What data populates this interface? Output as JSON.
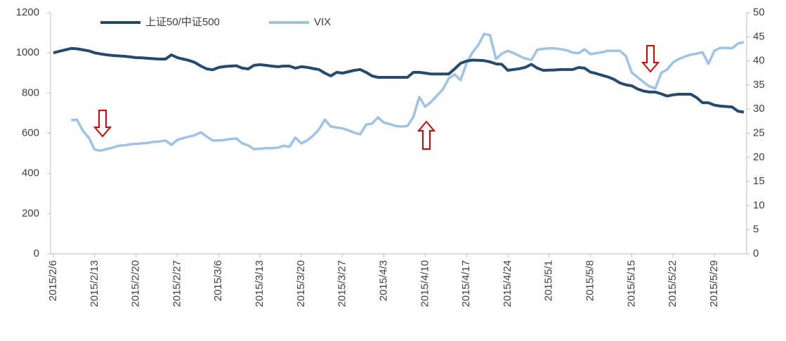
{
  "chart_data": {
    "type": "line",
    "x": [
      "2015/2/6",
      "2015/2/7",
      "2015/2/8",
      "2015/2/9",
      "2015/2/10",
      "2015/2/11",
      "2015/2/12",
      "2015/2/13",
      "2015/2/14",
      "2015/2/15",
      "2015/2/16",
      "2015/2/17",
      "2015/2/18",
      "2015/2/19",
      "2015/2/20",
      "2015/2/21",
      "2015/2/22",
      "2015/2/23",
      "2015/2/24",
      "2015/2/25",
      "2015/2/26",
      "2015/2/27",
      "2015/2/28",
      "2015/3/1",
      "2015/3/2",
      "2015/3/3",
      "2015/3/4",
      "2015/3/5",
      "2015/3/6",
      "2015/3/7",
      "2015/3/8",
      "2015/3/9",
      "2015/3/10",
      "2015/3/11",
      "2015/3/12",
      "2015/3/13",
      "2015/3/14",
      "2015/3/15",
      "2015/3/16",
      "2015/3/17",
      "2015/3/18",
      "2015/3/19",
      "2015/3/20",
      "2015/3/21",
      "2015/3/22",
      "2015/3/23",
      "2015/3/24",
      "2015/3/25",
      "2015/3/26",
      "2015/3/27",
      "2015/3/28",
      "2015/3/29",
      "2015/3/30",
      "2015/3/31",
      "2015/4/1",
      "2015/4/2",
      "2015/4/3",
      "2015/4/4",
      "2015/4/5",
      "2015/4/6",
      "2015/4/7",
      "2015/4/8",
      "2015/4/9",
      "2015/4/10",
      "2015/4/11",
      "2015/4/12",
      "2015/4/13",
      "2015/4/14",
      "2015/4/15",
      "2015/4/16",
      "2015/4/17",
      "2015/4/18",
      "2015/4/19",
      "2015/4/20",
      "2015/4/21",
      "2015/4/22",
      "2015/4/23",
      "2015/4/24",
      "2015/4/25",
      "2015/4/26",
      "2015/4/27",
      "2015/4/28",
      "2015/4/29",
      "2015/4/30",
      "2015/5/1",
      "2015/5/2",
      "2015/5/3",
      "2015/5/4",
      "2015/5/5",
      "2015/5/6",
      "2015/5/7",
      "2015/5/8",
      "2015/5/9",
      "2015/5/10",
      "2015/5/11",
      "2015/5/12",
      "2015/5/13",
      "2015/5/14",
      "2015/5/15",
      "2015/5/16",
      "2015/5/17",
      "2015/5/18",
      "2015/5/19",
      "2015/5/20",
      "2015/5/21",
      "2015/5/22",
      "2015/5/23",
      "2015/5/24",
      "2015/5/25",
      "2015/5/26",
      "2015/5/27",
      "2015/5/28",
      "2015/5/29",
      "2015/5/30",
      "2015/5/31",
      "2015/6/1",
      "2015/6/2",
      "2015/6/3"
    ],
    "xticks": [
      "2015/2/6",
      "2015/2/13",
      "2015/2/20",
      "2015/2/27",
      "2015/3/6",
      "2015/3/13",
      "2015/3/20",
      "2015/3/27",
      "2015/4/3",
      "2015/4/10",
      "2015/4/17",
      "2015/4/24",
      "2015/5/1",
      "2015/5/8",
      "2015/5/15",
      "2015/5/22",
      "2015/5/29"
    ],
    "series": [
      {
        "name": "上证50/中证500",
        "color": "#234a70",
        "values": [
          1000,
          1008,
          1015,
          1022,
          1020,
          1015,
          1010,
          1000,
          995,
          990,
          987,
          985,
          983,
          980,
          976,
          975,
          973,
          971,
          969,
          969,
          990,
          976,
          969,
          962,
          952,
          934,
          920,
          916,
          927,
          932,
          934,
          936,
          924,
          920,
          938,
          941,
          938,
          934,
          931,
          934,
          934,
          924,
          931,
          928,
          922,
          917,
          899,
          885,
          903,
          899,
          906,
          913,
          917,
          903,
          885,
          878,
          878,
          878,
          878,
          878,
          878,
          903,
          903,
          899,
          895,
          895,
          895,
          895,
          920,
          948,
          959,
          964,
          963,
          961,
          955,
          945,
          943,
          913,
          917,
          921,
          928,
          943,
          924,
          913,
          914,
          915,
          917,
          917,
          917,
          927,
          924,
          904,
          897,
          888,
          880,
          868,
          850,
          841,
          836,
          820,
          810,
          805,
          805,
          796,
          785,
          791,
          794,
          794,
          794,
          777,
          752,
          752,
          740,
          735,
          733,
          731,
          710,
          705
        ]
      },
      {
        "name": "VIX",
        "color": "#9dc3e6",
        "axis": "y2",
        "values": [
          null,
          null,
          null,
          27.7,
          27.8,
          25.5,
          24.1,
          21.6,
          21.4,
          21.7,
          22.0,
          22.4,
          22.5,
          22.7,
          22.8,
          22.9,
          23.0,
          23.2,
          23.3,
          23.5,
          22.6,
          23.6,
          24.0,
          24.3,
          24.6,
          25.2,
          24.3,
          23.5,
          23.5,
          23.6,
          23.8,
          23.9,
          22.9,
          22.5,
          21.7,
          21.8,
          21.9,
          21.9,
          22.0,
          22.4,
          22.2,
          24.1,
          22.9,
          23.5,
          24.5,
          25.8,
          27.8,
          26.4,
          26.2,
          26.0,
          25.6,
          25.1,
          24.8,
          26.8,
          27.0,
          28.3,
          27.2,
          26.9,
          26.5,
          26.4,
          26.5,
          28.4,
          32.5,
          30.5,
          31.5,
          32.8,
          34.1,
          36.4,
          37.2,
          36.0,
          39.5,
          41.7,
          43.3,
          45.6,
          45.3,
          40.4,
          41.5,
          42.1,
          41.6,
          41.0,
          40.5,
          40.2,
          42.3,
          42.5,
          42.6,
          42.6,
          42.4,
          42.2,
          41.7,
          41.6,
          42.4,
          41.4,
          41.6,
          41.8,
          42.1,
          42.1,
          42.1,
          41.0,
          37.6,
          36.6,
          35.6,
          34.7,
          34.3,
          37.5,
          38.2,
          39.7,
          40.4,
          40.9,
          41.3,
          41.5,
          41.8,
          39.4,
          42.1,
          42.7,
          42.7,
          42.6,
          43.6,
          43.9
        ]
      }
    ],
    "ylim": [
      0,
      1200
    ],
    "yticks": [
      0,
      200,
      400,
      600,
      800,
      1000,
      1200
    ],
    "y2lim": [
      0,
      50
    ],
    "y2ticks": [
      0,
      5,
      10,
      15,
      20,
      25,
      30,
      35,
      40,
      45,
      50
    ]
  }
}
